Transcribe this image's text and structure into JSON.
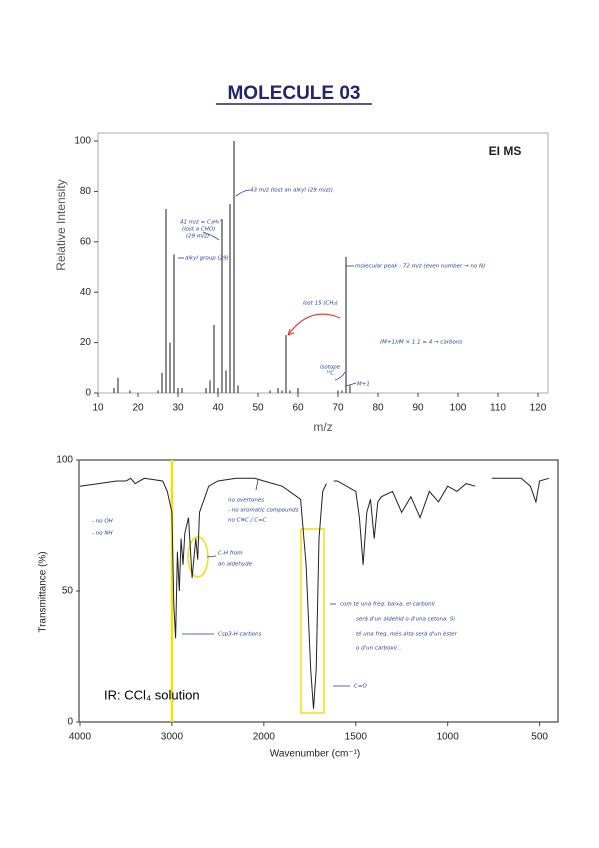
{
  "title": "MOLECULE 03",
  "chart_data": [
    {
      "type": "bar",
      "label": "EI MS",
      "xlabel": "m/z",
      "ylabel": "Relative Intensity",
      "color": "#444444",
      "x": [
        14,
        15,
        18,
        25,
        26,
        27,
        28,
        29,
        30,
        31,
        37,
        38,
        39,
        40,
        41,
        42,
        43,
        44,
        45,
        53,
        55,
        56,
        57,
        58,
        60,
        70,
        71,
        72,
        73
      ],
      "values": [
        2,
        6,
        1,
        1,
        8,
        73,
        20,
        55,
        2,
        2,
        2,
        5,
        27,
        2,
        69,
        9,
        75,
        100,
        3,
        1,
        2,
        1,
        23,
        1,
        2,
        1,
        1,
        54,
        3
      ],
      "xlim": [
        10,
        120
      ],
      "ylim": [
        0,
        100
      ],
      "xticks": [
        10,
        20,
        30,
        40,
        50,
        60,
        70,
        80,
        90,
        100,
        110,
        120
      ],
      "yticks": [
        0,
        20,
        40,
        60,
        80,
        100
      ],
      "annotations": [
        "43 m/z (lost an alkyl (29 m/z))",
        "41 m/z = C₃H₅⁺",
        "(lost a CHO)",
        "(29 m/z)",
        "alkyl group (29)",
        "lost 15 (CH₃)",
        "molecular peak : 72 m/z (even number → no N)",
        "isotope",
        "¹³C",
        "M+1",
        "(M+1)/M × 1.1 = 4 → carbons"
      ]
    },
    {
      "type": "line",
      "label": "IR: CCl₄ solution",
      "xlabel": "Wavenumber (cm⁻¹)",
      "ylabel": "Transmittance (%)",
      "color": "#222222",
      "x": [
        4000,
        3800,
        3600,
        3500,
        3450,
        3400,
        3300,
        3100,
        3050,
        3000,
        2980,
        2960,
        2940,
        2920,
        2900,
        2880,
        2860,
        2820,
        2780,
        2740,
        2720,
        2700,
        2600,
        2500,
        2300,
        2100,
        2000,
        1900,
        1800,
        1770,
        1745,
        1730,
        1715,
        1700,
        1680,
        1660,
        1640,
        1620,
        1600,
        1500,
        1480,
        1460,
        1440,
        1420,
        1400,
        1380,
        1360,
        1300,
        1250,
        1200,
        1150,
        1100,
        1050,
        1000,
        950,
        900,
        850,
        800,
        760,
        700,
        600,
        550,
        520,
        500,
        450
      ],
      "values": [
        90,
        91,
        92,
        92,
        93,
        91,
        93,
        92,
        88,
        80,
        45,
        32,
        65,
        50,
        70,
        60,
        72,
        78,
        55,
        70,
        62,
        80,
        90,
        92,
        93,
        93,
        92,
        90,
        85,
        60,
        20,
        5,
        20,
        70,
        88,
        91,
        null,
        92,
        92,
        88,
        78,
        60,
        80,
        85,
        70,
        84,
        86,
        88,
        80,
        86,
        78,
        88,
        84,
        90,
        88,
        91,
        90,
        null,
        93,
        93,
        93,
        90,
        84,
        92,
        93
      ],
      "xlim": [
        4000,
        400
      ],
      "xscale_break": 2000,
      "ylim": [
        0,
        100
      ],
      "xticks": [
        4000,
        3000,
        2000,
        1500,
        1000,
        500
      ],
      "yticks": [
        0,
        50,
        100
      ],
      "annotations": [
        "- no OH",
        "- no NH",
        "no overtones",
        "- no aromatic compounds",
        "no C≡C / C=C",
        "C-H from",
        "an aldehyde",
        "Csp3-H carbons",
        "C=O",
        "com té una freq. baixa, el carbonil",
        "serà d'un aldehid o d'una cetona. Si",
        "té una freq. més alta serà d'un èster",
        "o d'un carboxil..."
      ]
    }
  ]
}
